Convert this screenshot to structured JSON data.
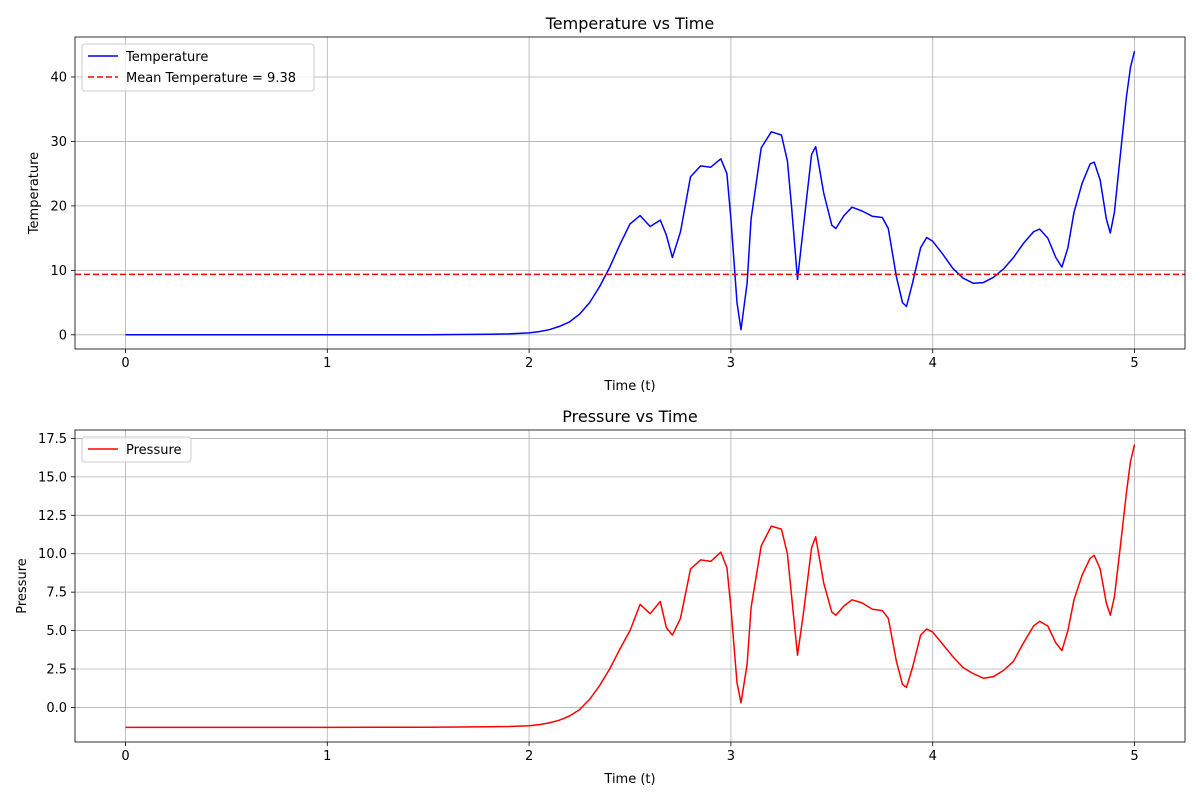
{
  "chart_data": [
    {
      "type": "line",
      "title": "Temperature vs Time",
      "xlabel": "Time (t)",
      "ylabel": "Temperature",
      "xlim": [
        -0.25,
        5.25
      ],
      "ylim": [
        -2.2,
        46.2
      ],
      "xticks": [
        0,
        1,
        2,
        3,
        4,
        5
      ],
      "yticks": [
        0,
        10,
        20,
        30,
        40
      ],
      "xtick_labels": [
        "0",
        "1",
        "2",
        "3",
        "4",
        "5"
      ],
      "ytick_labels": [
        "0",
        "10",
        "20",
        "30",
        "40"
      ],
      "grid": true,
      "legend": "top-left",
      "series": [
        {
          "name": "Temperature",
          "color": "#0000ff",
          "style": "solid",
          "x": [
            0,
            0.5,
            1.0,
            1.5,
            1.8,
            1.9,
            2.0,
            2.05,
            2.1,
            2.15,
            2.2,
            2.25,
            2.3,
            2.35,
            2.4,
            2.45,
            2.5,
            2.55,
            2.6,
            2.65,
            2.68,
            2.71,
            2.75,
            2.8,
            2.85,
            2.9,
            2.95,
            2.98,
            3.0,
            3.03,
            3.05,
            3.08,
            3.1,
            3.15,
            3.2,
            3.25,
            3.28,
            3.3,
            3.33,
            3.36,
            3.4,
            3.42,
            3.46,
            3.5,
            3.52,
            3.56,
            3.6,
            3.65,
            3.7,
            3.75,
            3.78,
            3.82,
            3.85,
            3.87,
            3.9,
            3.94,
            3.97,
            4.0,
            4.05,
            4.1,
            4.15,
            4.2,
            4.25,
            4.3,
            4.35,
            4.4,
            4.45,
            4.5,
            4.53,
            4.57,
            4.61,
            4.64,
            4.67,
            4.7,
            4.74,
            4.78,
            4.8,
            4.83,
            4.86,
            4.88,
            4.9,
            4.93,
            4.96,
            4.98,
            5.0
          ],
          "y": [
            0,
            0,
            0,
            0.02,
            0.08,
            0.15,
            0.3,
            0.5,
            0.8,
            1.3,
            2.0,
            3.2,
            5.0,
            7.5,
            10.5,
            14.0,
            17.2,
            18.5,
            16.8,
            17.8,
            15.5,
            12.0,
            16.0,
            24.5,
            26.2,
            26.0,
            27.3,
            25.0,
            18.0,
            5.0,
            0.8,
            8.0,
            18.0,
            29.0,
            31.5,
            31.0,
            27.0,
            20.0,
            8.6,
            17.0,
            28.0,
            29.2,
            22.0,
            17.0,
            16.5,
            18.5,
            19.8,
            19.2,
            18.4,
            18.2,
            16.5,
            9.0,
            5.0,
            4.4,
            8.0,
            13.5,
            15.1,
            14.5,
            12.5,
            10.3,
            8.8,
            8.0,
            8.1,
            8.9,
            10.2,
            12.0,
            14.2,
            16.0,
            16.4,
            15.0,
            12.0,
            10.5,
            13.5,
            19.0,
            23.5,
            26.5,
            26.8,
            24.0,
            18.0,
            15.8,
            19.0,
            28.0,
            37.0,
            41.5,
            44.0
          ]
        },
        {
          "name": "Mean Temperature = 9.38",
          "color": "#ff0000",
          "style": "dashed",
          "hline": 9.38
        }
      ]
    },
    {
      "type": "line",
      "title": "Pressure vs Time",
      "xlabel": "Time (t)",
      "ylabel": "Pressure",
      "xlim": [
        -0.25,
        5.25
      ],
      "ylim": [
        -2.25,
        18.05
      ],
      "xticks": [
        0,
        1,
        2,
        3,
        4,
        5
      ],
      "yticks": [
        0,
        2.5,
        5,
        7.5,
        10,
        12.5,
        15,
        17.5
      ],
      "xtick_labels": [
        "0",
        "1",
        "2",
        "3",
        "4",
        "5"
      ],
      "ytick_labels": [
        "0.0",
        "2.5",
        "5.0",
        "7.5",
        "10.0",
        "12.5",
        "15.0",
        "17.5"
      ],
      "grid": true,
      "legend": "top-left",
      "series": [
        {
          "name": "Pressure",
          "color": "#ff0000",
          "style": "solid",
          "x": [
            0,
            0.5,
            1.0,
            1.5,
            1.8,
            1.9,
            2.0,
            2.05,
            2.1,
            2.15,
            2.2,
            2.25,
            2.3,
            2.35,
            2.4,
            2.45,
            2.5,
            2.55,
            2.6,
            2.65,
            2.68,
            2.71,
            2.75,
            2.8,
            2.85,
            2.9,
            2.95,
            2.98,
            3.0,
            3.03,
            3.05,
            3.08,
            3.1,
            3.15,
            3.2,
            3.25,
            3.28,
            3.3,
            3.33,
            3.36,
            3.4,
            3.42,
            3.46,
            3.5,
            3.52,
            3.56,
            3.6,
            3.65,
            3.7,
            3.75,
            3.78,
            3.82,
            3.85,
            3.87,
            3.9,
            3.94,
            3.97,
            4.0,
            4.05,
            4.1,
            4.15,
            4.2,
            4.25,
            4.3,
            4.35,
            4.4,
            4.45,
            4.5,
            4.53,
            4.57,
            4.61,
            4.64,
            4.67,
            4.7,
            4.74,
            4.78,
            4.8,
            4.83,
            4.86,
            4.88,
            4.9,
            4.93,
            4.96,
            4.98,
            5.0
          ],
          "y": [
            -1.3,
            -1.3,
            -1.3,
            -1.29,
            -1.26,
            -1.24,
            -1.19,
            -1.12,
            -1.01,
            -0.83,
            -0.56,
            -0.15,
            0.52,
            1.43,
            2.51,
            3.8,
            5.0,
            6.7,
            6.1,
            6.9,
            5.2,
            4.7,
            5.8,
            9.0,
            9.6,
            9.5,
            10.1,
            9.1,
            6.5,
            1.6,
            0.3,
            2.8,
            6.5,
            10.5,
            11.8,
            11.6,
            10.0,
            7.3,
            3.4,
            6.2,
            10.4,
            11.1,
            8.1,
            6.2,
            6.0,
            6.6,
            7.0,
            6.8,
            6.4,
            6.3,
            5.8,
            3.0,
            1.5,
            1.3,
            2.6,
            4.7,
            5.1,
            4.9,
            4.1,
            3.3,
            2.6,
            2.2,
            1.9,
            2.0,
            2.4,
            3.0,
            4.2,
            5.3,
            5.6,
            5.3,
            4.2,
            3.7,
            5.0,
            7.0,
            8.6,
            9.7,
            9.9,
            9.0,
            6.8,
            6.0,
            7.2,
            10.5,
            14.0,
            16.0,
            17.1
          ]
        }
      ]
    }
  ]
}
